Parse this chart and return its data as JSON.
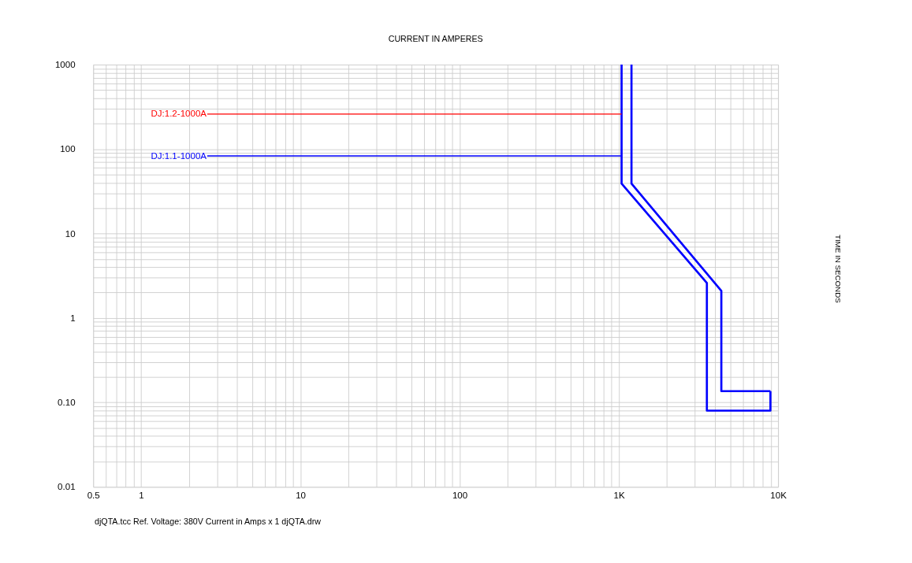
{
  "chart_data": {
    "type": "line",
    "title": "CURRENT IN AMPERES",
    "log": "xy",
    "grid": true,
    "legend": false,
    "marker": "none",
    "line_style": "solid",
    "annotations": [
      "djQTA.tcc   Ref. Voltage: 380V   Current in Amps x 1   djQTA.drw",
      "TIME IN SECONDS"
    ],
    "xlim": [
      0.5,
      10000
    ],
    "ylim": [
      0.01,
      1000
    ],
    "xticks": [
      0.5,
      {
        "value": 0.6,
        "label": null
      },
      {
        "value": 0.7,
        "label": null
      },
      {
        "value": 0.8,
        "label": null
      },
      {
        "value": 0.9,
        "label": null
      },
      1,
      {
        "value": 2,
        "label": null
      },
      {
        "value": 3,
        "label": null
      },
      {
        "value": 4,
        "label": null
      },
      {
        "value": 5,
        "label": null
      },
      {
        "value": 6,
        "label": null
      },
      {
        "value": 7,
        "label": null
      },
      {
        "value": 8,
        "label": null
      },
      {
        "value": 9,
        "label": null
      },
      10,
      {
        "value": 20,
        "label": null
      },
      {
        "value": 30,
        "label": null
      },
      {
        "value": 40,
        "label": null
      },
      {
        "value": 50,
        "label": null
      },
      {
        "value": 60,
        "label": null
      },
      {
        "value": 70,
        "label": null
      },
      {
        "value": 80,
        "label": null
      },
      {
        "value": 90,
        "label": null
      },
      100,
      {
        "value": 200,
        "label": null
      },
      {
        "value": 300,
        "label": null
      },
      {
        "value": 400,
        "label": null
      },
      {
        "value": 500,
        "label": null
      },
      {
        "value": 600,
        "label": null
      },
      {
        "value": 700,
        "label": null
      },
      {
        "value": 800,
        "label": null
      },
      {
        "value": 900,
        "label": null
      },
      {
        "value": 1000,
        "label": "1K"
      },
      {
        "value": 2000,
        "label": null
      },
      {
        "value": 3000,
        "label": null
      },
      {
        "value": 4000,
        "label": null
      },
      {
        "value": 5000,
        "label": null
      },
      {
        "value": 6000,
        "label": null
      },
      {
        "value": 7000,
        "label": null
      },
      {
        "value": 8000,
        "label": null
      },
      {
        "value": 9000,
        "label": null
      },
      {
        "value": 10000,
        "label": "10K"
      }
    ],
    "yticks": [
      0.01,
      {
        "value": 0.02,
        "label": null
      },
      {
        "value": 0.03,
        "label": null
      },
      {
        "value": 0.04,
        "label": null
      },
      {
        "value": 0.05,
        "label": null
      },
      {
        "value": 0.06,
        "label": null
      },
      {
        "value": 0.07,
        "label": null
      },
      {
        "value": 0.08,
        "label": null
      },
      {
        "value": 0.09,
        "label": null
      },
      {
        "value": 0.1,
        "label": "0.10"
      },
      {
        "value": 0.2,
        "label": null
      },
      {
        "value": 0.3,
        "label": null
      },
      {
        "value": 0.4,
        "label": null
      },
      {
        "value": 0.5,
        "label": null
      },
      {
        "value": 0.6,
        "label": null
      },
      {
        "value": 0.7,
        "label": null
      },
      {
        "value": 0.8,
        "label": null
      },
      {
        "value": 0.9,
        "label": null
      },
      1,
      {
        "value": 2,
        "label": null
      },
      {
        "value": 3,
        "label": null
      },
      {
        "value": 4,
        "label": null
      },
      {
        "value": 5,
        "label": null
      },
      {
        "value": 6,
        "label": null
      },
      {
        "value": 7,
        "label": null
      },
      {
        "value": 8,
        "label": null
      },
      {
        "value": 9,
        "label": null
      },
      10,
      {
        "value": 20,
        "label": null
      },
      {
        "value": 30,
        "label": null
      },
      {
        "value": 40,
        "label": null
      },
      {
        "value": 50,
        "label": null
      },
      {
        "value": 60,
        "label": null
      },
      {
        "value": 70,
        "label": null
      },
      {
        "value": 80,
        "label": null
      },
      {
        "value": 90,
        "label": null
      },
      100,
      {
        "value": 200,
        "label": null
      },
      {
        "value": 300,
        "label": null
      },
      {
        "value": 400,
        "label": null
      },
      {
        "value": 500,
        "label": null
      },
      {
        "value": 600,
        "label": null
      },
      {
        "value": 700,
        "label": null
      },
      {
        "value": 800,
        "label": null
      },
      {
        "value": 900,
        "label": null
      },
      1000
    ],
    "series": [
      {
        "color": "#0000ff",
        "x": [
          1040,
          1040,
          3570,
          3570,
          8950,
          8950
        ],
        "values": [
          1000,
          39,
          2.6,
          0.08,
          0.08,
          0.136
        ]
      },
      {
        "color": "#0000ff",
        "x": [
          1200,
          1200,
          4400,
          4400,
          8950
        ],
        "values": [
          1000,
          39,
          2.1,
          0.136,
          0.136
        ]
      },
      {
        "name": "DJ:1.2-1000A",
        "color": "#ff0000",
        "x": [
          2.6,
          1040
        ],
        "values": [
          260,
          260
        ]
      },
      {
        "name": "DJ:1.1-1000A",
        "color": "#0000ff",
        "x": [
          2.6,
          1040
        ],
        "values": [
          83,
          83
        ]
      }
    ]
  }
}
